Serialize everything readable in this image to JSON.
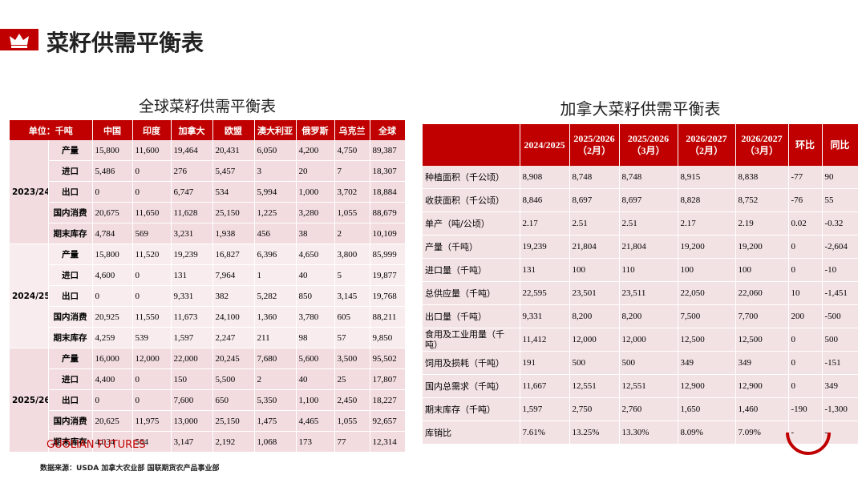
{
  "header": {
    "title": "菜籽供需平衡表"
  },
  "global_table": {
    "title": "全球菜籽供需平衡表",
    "columns": [
      "单位：千吨",
      "中国",
      "印度",
      "加拿大",
      "欧盟",
      "澳大利亚",
      "俄罗斯",
      "乌克兰",
      "全球"
    ],
    "groups": [
      {
        "year": "2023/24",
        "rows": [
          [
            "产量",
            "15,800",
            "11,600",
            "19,464",
            "20,431",
            "6,050",
            "4,200",
            "4,750",
            "89,387"
          ],
          [
            "进口",
            "5,486",
            "0",
            "276",
            "5,457",
            "3",
            "20",
            "7",
            "18,307"
          ],
          [
            "出口",
            "0",
            "0",
            "6,747",
            "534",
            "5,994",
            "1,000",
            "3,702",
            "18,884"
          ],
          [
            "国内消费",
            "20,675",
            "11,650",
            "11,628",
            "25,150",
            "1,225",
            "3,280",
            "1,055",
            "88,679"
          ],
          [
            "期末库存",
            "4,784",
            "569",
            "3,231",
            "1,938",
            "456",
            "38",
            "2",
            "10,109"
          ]
        ]
      },
      {
        "year": "2024/25",
        "rows": [
          [
            "产量",
            "15,800",
            "11,520",
            "19,239",
            "16,827",
            "6,396",
            "4,650",
            "3,800",
            "85,999"
          ],
          [
            "进口",
            "4,600",
            "0",
            "131",
            "7,964",
            "1",
            "40",
            "5",
            "19,877"
          ],
          [
            "出口",
            "0",
            "0",
            "9,331",
            "382",
            "5,282",
            "850",
            "3,145",
            "19,768"
          ],
          [
            "国内消费",
            "20,925",
            "11,550",
            "11,673",
            "24,100",
            "1,360",
            "3,780",
            "605",
            "88,211"
          ],
          [
            "期末库存",
            "4,259",
            "539",
            "1,597",
            "2,247",
            "211",
            "98",
            "57",
            "9,850"
          ]
        ]
      },
      {
        "year": "2025/26",
        "rows": [
          [
            "产量",
            "16,000",
            "12,000",
            "22,000",
            "20,245",
            "7,680",
            "5,600",
            "3,500",
            "95,502"
          ],
          [
            "进口",
            "4,400",
            "0",
            "150",
            "5,500",
            "2",
            "40",
            "25",
            "17,807"
          ],
          [
            "出口",
            "0",
            "0",
            "7,600",
            "650",
            "5,350",
            "1,100",
            "2,450",
            "18,227"
          ],
          [
            "国内消费",
            "20,625",
            "11,975",
            "13,000",
            "25,150",
            "1,475",
            "4,465",
            "1,055",
            "92,657"
          ],
          [
            "期末库存",
            "4,034",
            "564",
            "3,147",
            "2,192",
            "1,068",
            "173",
            "77",
            "12,314"
          ]
        ]
      }
    ]
  },
  "canada_table": {
    "title": "加拿大菜籽供需平衡表",
    "columns": [
      "2024/2025",
      "2025/2026\n（2月）",
      "2025/2026\n（3月）",
      "2026/2027\n（2月）",
      "2026/2027\n（3月）",
      "环比",
      "同比"
    ],
    "rows": [
      [
        "种植面积（千公顷）",
        "8,908",
        "8,748",
        "8,748",
        "8,915",
        "8,838",
        "-77",
        "90"
      ],
      [
        "收获面积（千公顷）",
        "8,846",
        "8,697",
        "8,697",
        "8,828",
        "8,752",
        "-76",
        "55"
      ],
      [
        "单产（吨/公顷）",
        "2.17",
        "2.51",
        "2.51",
        "2.17",
        "2.19",
        "0.02",
        "-0.32"
      ],
      [
        "产量（千吨）",
        "19,239",
        "21,804",
        "21,804",
        "19,200",
        "19,200",
        "0",
        "-2,604"
      ],
      [
        "进口量（千吨）",
        "131",
        "100",
        "110",
        "100",
        "100",
        "0",
        "-10"
      ],
      [
        "总供应量（千吨）",
        "22,595",
        "23,501",
        "23,511",
        "22,050",
        "22,060",
        "10",
        "-1,451"
      ],
      [
        "出口量（千吨）",
        "9,331",
        "8,200",
        "8,200",
        "7,500",
        "7,700",
        "200",
        "-500"
      ],
      [
        "食用及工业用量（千吨）",
        "11,412",
        "12,000",
        "12,000",
        "12,500",
        "12,500",
        "0",
        "500"
      ],
      [
        "饲用及损耗（千吨）",
        "191",
        "500",
        "500",
        "349",
        "349",
        "0",
        "-151"
      ],
      [
        "国内总需求（千吨）",
        "11,667",
        "12,551",
        "12,551",
        "12,900",
        "12,900",
        "0",
        "349"
      ],
      [
        "期末库存（千吨）",
        "1,597",
        "2,750",
        "2,760",
        "1,650",
        "1,460",
        "-190",
        "-1,300"
      ],
      [
        "库销比",
        "7.61%",
        "13.25%",
        "13.30%",
        "8.09%",
        "7.09%",
        "-",
        "-"
      ]
    ]
  },
  "footer": {
    "brand": "GUOLIAN FUTURES",
    "source": "数据来源：USDA 加拿大农业部 国联期货农产品事业部"
  }
}
